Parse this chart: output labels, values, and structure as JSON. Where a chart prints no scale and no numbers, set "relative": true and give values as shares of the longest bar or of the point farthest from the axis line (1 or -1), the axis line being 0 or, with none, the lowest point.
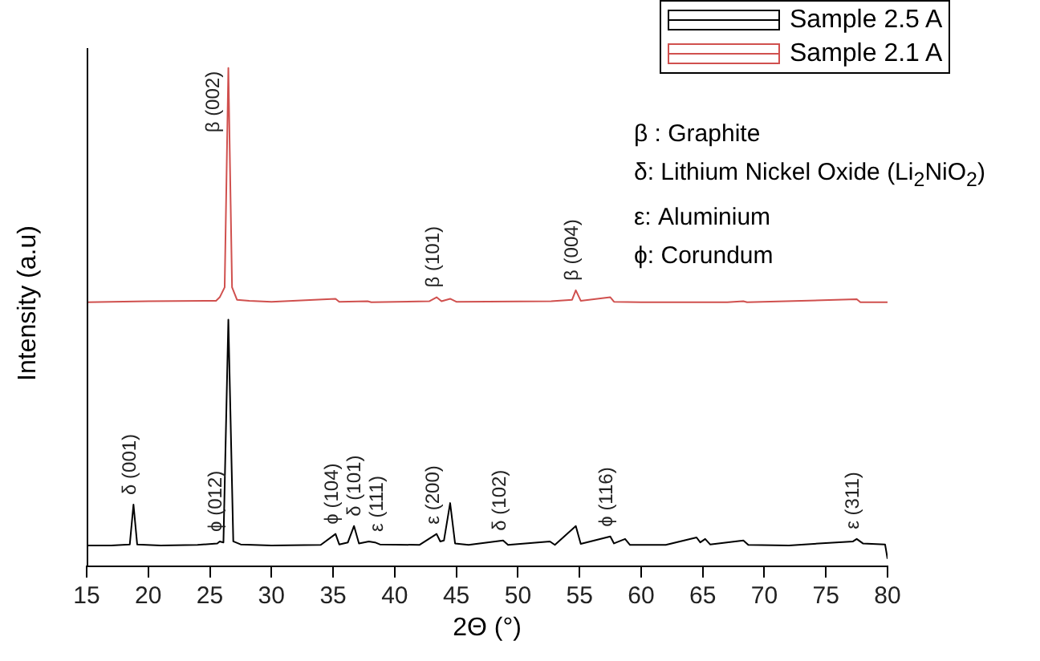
{
  "chart_data": {
    "type": "line",
    "relative": true,
    "xlabel": "2Θ (°)",
    "ylabel": "Intensity (a.u)",
    "xlim": [
      15,
      80
    ],
    "xticks": [
      15,
      20,
      25,
      30,
      35,
      40,
      45,
      50,
      55,
      60,
      65,
      70,
      75,
      80
    ],
    "grid": false,
    "legend": "top right",
    "marker": "none",
    "line_style": "solid",
    "series": [
      {
        "name": "Sample 2.5 A",
        "color": "#000000",
        "x": [
          15,
          17,
          18.5,
          18.8,
          19.1,
          21,
          24,
          25.6,
          25.8,
          26.1,
          26.5,
          26.9,
          27.5,
          30,
          34,
          35.2,
          35.5,
          36.2,
          36.7,
          37.1,
          37.9,
          38.4,
          38.8,
          42,
          43.4,
          43.7,
          44.0,
          44.5,
          44.9,
          46,
          48.8,
          49.2,
          52.6,
          53,
          54.7,
          55.1,
          57.5,
          57.8,
          58.7,
          59.1,
          62,
          64.5,
          64.8,
          65.2,
          65.6,
          68.3,
          68.7,
          72,
          77.2,
          77.5,
          78,
          79.8,
          80
        ],
        "values": [
          0.042,
          0.042,
          0.044,
          0.124,
          0.044,
          0.042,
          0.043,
          0.046,
          0.05,
          0.048,
          0.495,
          0.05,
          0.044,
          0.042,
          0.043,
          0.065,
          0.044,
          0.048,
          0.081,
          0.046,
          0.05,
          0.048,
          0.044,
          0.043,
          0.065,
          0.05,
          0.052,
          0.127,
          0.046,
          0.043,
          0.052,
          0.043,
          0.05,
          0.043,
          0.081,
          0.045,
          0.06,
          0.046,
          0.055,
          0.043,
          0.043,
          0.058,
          0.048,
          0.055,
          0.044,
          0.052,
          0.043,
          0.042,
          0.05,
          0.055,
          0.046,
          0.044,
          0.015
        ]
      },
      {
        "name": "Sample 2.1 A",
        "color": "#d0504e",
        "x": [
          15,
          20,
          25.5,
          25.8,
          26.2,
          26.5,
          26.8,
          27.2,
          28.2,
          30,
          35.2,
          35.5,
          37.8,
          38.1,
          42.8,
          43.4,
          43.8,
          44.5,
          45,
          52.7,
          54.4,
          54.7,
          55.1,
          57.5,
          57.8,
          60,
          67,
          68.3,
          68.6,
          77.5,
          77.8,
          80
        ],
        "values": [
          0.53,
          0.532,
          0.533,
          0.54,
          0.56,
          1.0,
          0.56,
          0.535,
          0.533,
          0.531,
          0.537,
          0.531,
          0.532,
          0.53,
          0.532,
          0.54,
          0.532,
          0.537,
          0.531,
          0.532,
          0.535,
          0.554,
          0.533,
          0.54,
          0.531,
          0.53,
          0.53,
          0.532,
          0.53,
          0.536,
          0.53,
          0.53
        ]
      }
    ],
    "annotations": [
      {
        "text": "δ (001)",
        "x": 18.8,
        "y": 0.124
      },
      {
        "text": "ϕ (012)",
        "x": 25.8,
        "y": 0.05
      },
      {
        "text": "β (002)",
        "x": 26.5,
        "y": 1.0
      },
      {
        "text": "ϕ (104)",
        "x": 35.2,
        "y": 0.065
      },
      {
        "text": "δ (101)",
        "x": 36.7,
        "y": 0.081
      },
      {
        "text": "ε (111)",
        "x": 37.9,
        "y": 0.05
      },
      {
        "text": "ε (200)",
        "x": 43.4,
        "y": 0.065
      },
      {
        "text": "β (101)",
        "x": 43.4,
        "y": 0.54
      },
      {
        "text": "δ (102)",
        "x": 48.8,
        "y": 0.052
      },
      {
        "text": "β (004)",
        "x": 54.7,
        "y": 0.554
      },
      {
        "text": "ϕ (116)",
        "x": 57.5,
        "y": 0.06
      },
      {
        "text": "ε (311)",
        "x": 77.5,
        "y": 0.055
      },
      "β : Graphite",
      "δ: Lithium Nickel Oxide (Li$_{2}$NiO$_{2}$)",
      "ε: Aluminium",
      "ϕ: Corundum"
    ]
  }
}
